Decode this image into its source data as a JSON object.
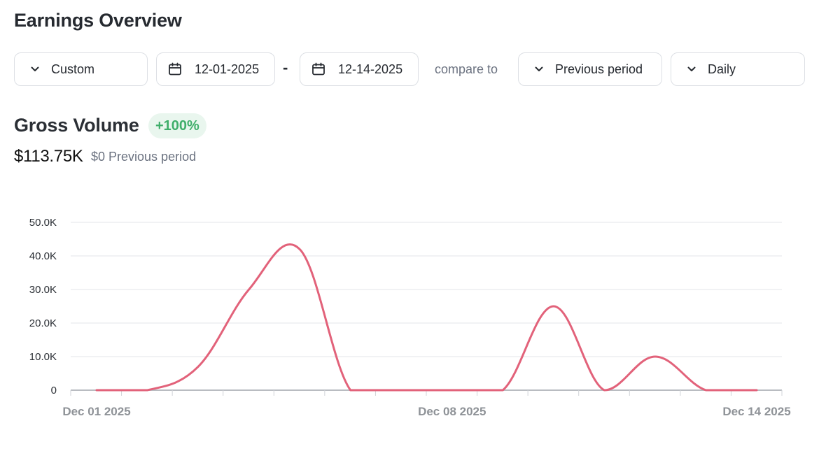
{
  "header": {
    "title": "Earnings Overview"
  },
  "filters": {
    "range_preset": "Custom",
    "start_date": "12-01-2025",
    "date_separator": "-",
    "end_date": "12-14-2025",
    "compare_label": "compare to",
    "compare_option": "Previous period",
    "granularity": "Daily"
  },
  "metric": {
    "title": "Gross Volume",
    "change_badge": "+100%",
    "total": "$113.75K",
    "previous": "$0 Previous period"
  },
  "colors": {
    "line": "#e2627a",
    "badge_bg": "#e9f6ee",
    "badge_text": "#3fae6a"
  },
  "chart_data": {
    "type": "line",
    "x": [
      "2025-12-01",
      "2025-12-02",
      "2025-12-03",
      "2025-12-04",
      "2025-12-05",
      "2025-12-06",
      "2025-12-07",
      "2025-12-08",
      "2025-12-09",
      "2025-12-10",
      "2025-12-11",
      "2025-12-12",
      "2025-12-13",
      "2025-12-14"
    ],
    "series": [
      {
        "values": [
          0,
          0,
          7000,
          30000,
          42000,
          0,
          0,
          0,
          0,
          25000,
          0,
          10000,
          0,
          0
        ]
      }
    ],
    "ylim": [
      0,
      50000
    ],
    "y_ticks": [
      {
        "value": 0,
        "label": "0"
      },
      {
        "value": 10000,
        "label": "10.0K"
      },
      {
        "value": 20000,
        "label": "20.0K"
      },
      {
        "value": 30000,
        "label": "30.0K"
      },
      {
        "value": 40000,
        "label": "40.0K"
      },
      {
        "value": 50000,
        "label": "50.0K"
      }
    ],
    "x_tick_labels": [
      {
        "x": "2025-12-01",
        "label": "Dec 01 2025"
      },
      {
        "x": "2025-12-08",
        "label": "Dec 08 2025"
      },
      {
        "x": "2025-12-14",
        "label": "Dec 14 2025"
      }
    ],
    "grid": true,
    "legend": "none"
  }
}
